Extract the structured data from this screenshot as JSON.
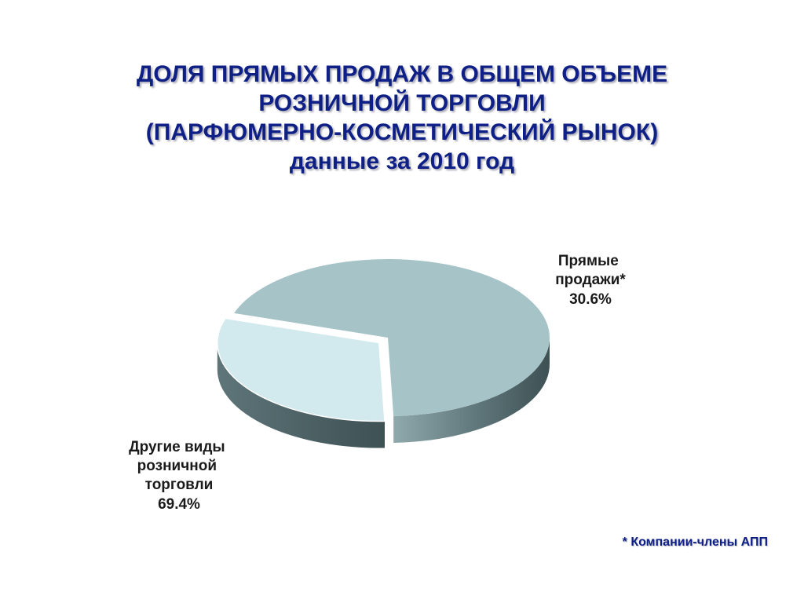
{
  "slide": {
    "title_lines": [
      "ДОЛЯ ПРЯМЫХ ПРОДАЖ В ОБЩЕМ ОБЪЕМЕ",
      "РОЗНИЧНОЙ ТОРГОВЛИ",
      "(ПАРФЮМЕРНО-КОСМЕТИЧЕСКИЙ РЫНОК)",
      "данные за 2010 год"
    ],
    "footnote": "* Компании-члены АПП"
  },
  "colors": {
    "title": "#0e1f86",
    "slice_direct": "#d2e9ee",
    "slice_other": "#a6c4c8",
    "side_dark": "#3e5154",
    "side_light": "#8fa9ad"
  },
  "chart_data": {
    "type": "pie",
    "style": "3d-exploded",
    "title": "ДОЛЯ ПРЯМЫХ ПРОДАЖ В ОБЩЕМ ОБЪЕМЕ РОЗНИЧНОЙ ТОРГОВЛИ (ПАРФЮМЕРНО-КОСМЕТИЧЕСКИЙ РЫНОК) данные за 2010 год",
    "slices": [
      {
        "label_lines": [
          "Прямые",
          "продажи*"
        ],
        "value": 30.6,
        "value_label": "30.6%",
        "color": "#d2e9ee",
        "exploded": true
      },
      {
        "label_lines": [
          "Другие виды",
          "розничной",
          "торговли"
        ],
        "value": 69.4,
        "value_label": "69.4%",
        "color": "#a6c4c8",
        "exploded": false
      }
    ]
  }
}
